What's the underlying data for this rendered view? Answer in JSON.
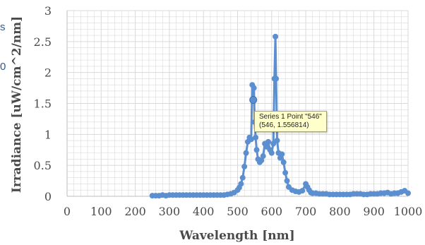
{
  "edge_text": {
    "line1": "s",
    "line2": "0"
  },
  "tooltip": {
    "line1": "Series 1 Point \"546\"",
    "line2": "(546, 1.556814)"
  },
  "colors": {
    "series": "#5b8fd0",
    "grid": "#d9d9d9",
    "axis": "#4a4a4a",
    "tooltip_bg": "#ffffcc"
  },
  "chart_data": {
    "type": "line",
    "title": "",
    "xlabel": "Wavelength [nm]",
    "ylabel": "Irradiance [uW/cm^2/nm]",
    "xlim": [
      0,
      1000
    ],
    "ylim": [
      0,
      3
    ],
    "xticks": [
      0,
      100,
      200,
      300,
      400,
      500,
      600,
      700,
      800,
      900,
      1000
    ],
    "yticks": [
      0,
      0.5,
      1,
      1.5,
      2,
      2.5,
      3
    ],
    "grid": true,
    "legend": "none",
    "markers": true,
    "series": [
      {
        "x": [
          250,
          260,
          270,
          280,
          290,
          300,
          310,
          320,
          330,
          340,
          350,
          360,
          370,
          380,
          390,
          400,
          410,
          420,
          430,
          440,
          450,
          460,
          470,
          480,
          490,
          500,
          505,
          510,
          515,
          520,
          525,
          530,
          535,
          540,
          543,
          546,
          548,
          550,
          553,
          556,
          560,
          565,
          570,
          575,
          580,
          585,
          590,
          595,
          600,
          605,
          608,
          611,
          613,
          616,
          620,
          625,
          630,
          635,
          640,
          645,
          650,
          660,
          670,
          680,
          690,
          700,
          705,
          710,
          715,
          720,
          730,
          740,
          750,
          760,
          770,
          780,
          790,
          800,
          810,
          820,
          830,
          840,
          850,
          860,
          870,
          880,
          890,
          900,
          910,
          920,
          930,
          940,
          950,
          960,
          970,
          980,
          990,
          1000
        ],
        "y": [
          0.01,
          0.01,
          0.01,
          0.02,
          0.01,
          0.02,
          0.02,
          0.02,
          0.02,
          0.02,
          0.02,
          0.02,
          0.02,
          0.02,
          0.02,
          0.02,
          0.02,
          0.02,
          0.02,
          0.02,
          0.02,
          0.02,
          0.03,
          0.04,
          0.06,
          0.1,
          0.14,
          0.2,
          0.3,
          0.48,
          0.7,
          0.88,
          0.95,
          0.92,
          1.8,
          1.56,
          1.75,
          1.2,
          0.95,
          0.75,
          0.6,
          0.55,
          0.58,
          0.65,
          0.85,
          0.8,
          0.88,
          0.75,
          0.7,
          0.85,
          1.9,
          2.58,
          1.9,
          0.9,
          0.7,
          0.62,
          0.68,
          0.55,
          0.38,
          0.25,
          0.15,
          0.1,
          0.08,
          0.07,
          0.09,
          0.2,
          0.15,
          0.1,
          0.06,
          0.05,
          0.05,
          0.04,
          0.04,
          0.04,
          0.03,
          0.03,
          0.03,
          0.03,
          0.03,
          0.03,
          0.03,
          0.04,
          0.04,
          0.04,
          0.03,
          0.03,
          0.04,
          0.04,
          0.04,
          0.05,
          0.05,
          0.06,
          0.04,
          0.05,
          0.05,
          0.07,
          0.09,
          0.05
        ]
      }
    ],
    "highlight_point": {
      "x": 546,
      "y": 1.556814
    }
  }
}
